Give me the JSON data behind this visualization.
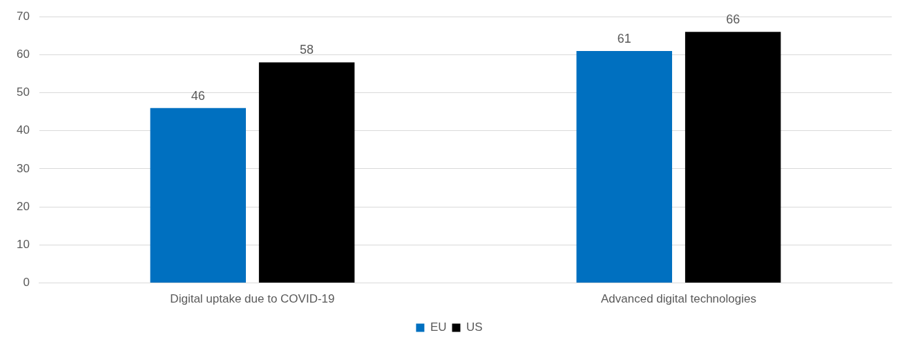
{
  "chart_data": {
    "type": "bar",
    "categories": [
      "Digital uptake due to COVID-19",
      "Advanced digital technologies"
    ],
    "series": [
      {
        "name": "EU",
        "color": "#0070c0",
        "values": [
          46,
          61
        ]
      },
      {
        "name": "US",
        "color": "#000000",
        "values": [
          58,
          66
        ]
      }
    ],
    "ylim": [
      0,
      70
    ],
    "yticks": [
      0,
      10,
      20,
      30,
      40,
      50,
      60,
      70
    ],
    "grid": "y",
    "legend": "bottom",
    "data_labels": true
  }
}
